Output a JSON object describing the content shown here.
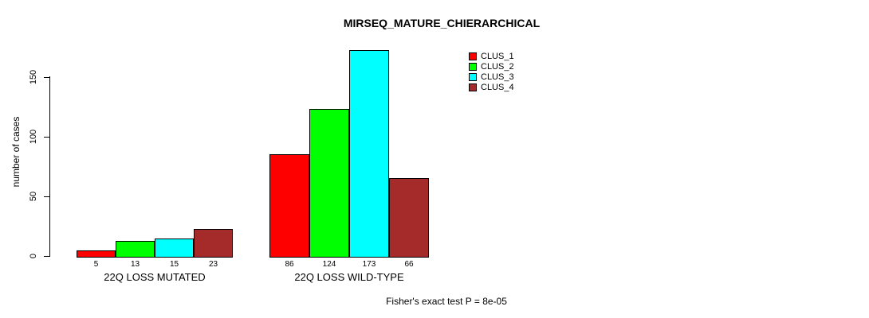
{
  "chart_data": {
    "type": "bar",
    "title": "MIRSEQ_MATURE_CHIERARCHICAL",
    "ylabel": "number of cases",
    "categories": [
      "22Q LOSS MUTATED",
      "22Q LOSS WILD-TYPE"
    ],
    "series": [
      {
        "name": "CLUS_1",
        "color": "#FF0000",
        "values": [
          5,
          86
        ]
      },
      {
        "name": "CLUS_2",
        "color": "#00FF00",
        "values": [
          13,
          124
        ]
      },
      {
        "name": "CLUS_3",
        "color": "#00FFFF",
        "values": [
          15,
          173
        ]
      },
      {
        "name": "CLUS_4",
        "color": "#A52A2A",
        "values": [
          23,
          66
        ]
      }
    ],
    "yticks": [
      0,
      50,
      100,
      150
    ],
    "ylim": [
      0,
      175
    ],
    "grid": false,
    "bar_value_labels": true,
    "legend_position": "top-right",
    "annotation": "Fisher's exact test P = 8e-05"
  },
  "colors": {
    "background": "#FFFFFF",
    "axis": "#000000",
    "text": "#000000",
    "bar_border": "#000000"
  }
}
